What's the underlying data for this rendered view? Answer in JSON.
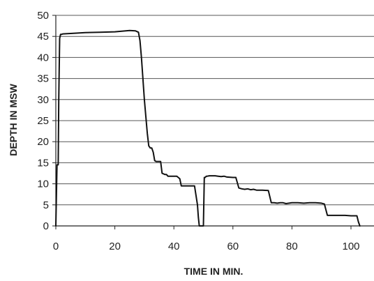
{
  "chart_data": {
    "type": "line",
    "title": "",
    "xlabel": "TIME IN MIN.",
    "ylabel": "DEPTH IN MSW",
    "xlim": [
      0,
      105
    ],
    "ylim": [
      0,
      50
    ],
    "xticks": [
      0,
      20,
      40,
      60,
      80,
      100
    ],
    "yticks": [
      0,
      5,
      10,
      15,
      20,
      25,
      30,
      35,
      40,
      45,
      50
    ],
    "grid": "horizontal",
    "legend": "none",
    "colors": {
      "line": "#111111",
      "grid": "#555555",
      "axis": "#222222",
      "background": "#ffffff"
    },
    "series": [
      {
        "x": [
          0,
          0.4,
          0.8,
          1,
          1.3,
          1.6,
          2,
          2.4,
          5,
          10,
          15,
          20,
          25,
          27,
          28,
          28.5,
          29,
          29.5,
          30,
          30.5,
          31,
          31.5,
          32,
          32.5,
          33,
          33.5,
          34,
          34.5,
          35,
          35.5,
          36,
          37,
          37.5,
          38,
          39,
          40,
          41,
          42,
          42.5,
          43,
          44,
          45,
          46,
          47,
          48,
          48.3,
          48.6,
          49,
          49.3,
          49.6,
          50,
          50.3,
          50.6,
          51,
          51.3,
          52,
          53,
          54,
          55,
          56,
          57,
          58,
          60,
          61,
          62,
          63,
          64,
          65,
          66,
          67,
          68,
          70,
          72,
          73,
          74,
          75,
          76,
          77,
          78,
          80,
          82,
          84,
          86,
          88,
          90,
          91,
          92,
          93,
          94,
          96,
          98,
          100,
          102,
          102.5,
          103
        ],
        "y": [
          0,
          14.5,
          14.5,
          30,
          44.5,
          45.5,
          45.5,
          45.6,
          45.7,
          45.9,
          46,
          46.1,
          46.4,
          46.3,
          46,
          44,
          40,
          35,
          30,
          26,
          22,
          19,
          18.5,
          18.5,
          17.5,
          15.5,
          15.3,
          15.3,
          15.3,
          15.3,
          12.5,
          12.2,
          12.2,
          11.8,
          11.8,
          11.8,
          11.8,
          11.2,
          9.5,
          9.5,
          9.5,
          9.5,
          9.5,
          9.5,
          5,
          2,
          0,
          0,
          0,
          0,
          0,
          11.5,
          11.5,
          11.8,
          11.8,
          11.9,
          11.9,
          11.9,
          11.8,
          11.7,
          11.8,
          11.6,
          11.5,
          11.5,
          9,
          8.8,
          8.7,
          8.8,
          8.6,
          8.7,
          8.5,
          8.5,
          8.4,
          5.5,
          5.5,
          5.4,
          5.5,
          5.5,
          5.3,
          5.5,
          5.5,
          5.4,
          5.5,
          5.5,
          5.4,
          5.2,
          2.5,
          2.5,
          2.5,
          2.5,
          2.5,
          2.4,
          2.4,
          1,
          0
        ]
      }
    ]
  }
}
